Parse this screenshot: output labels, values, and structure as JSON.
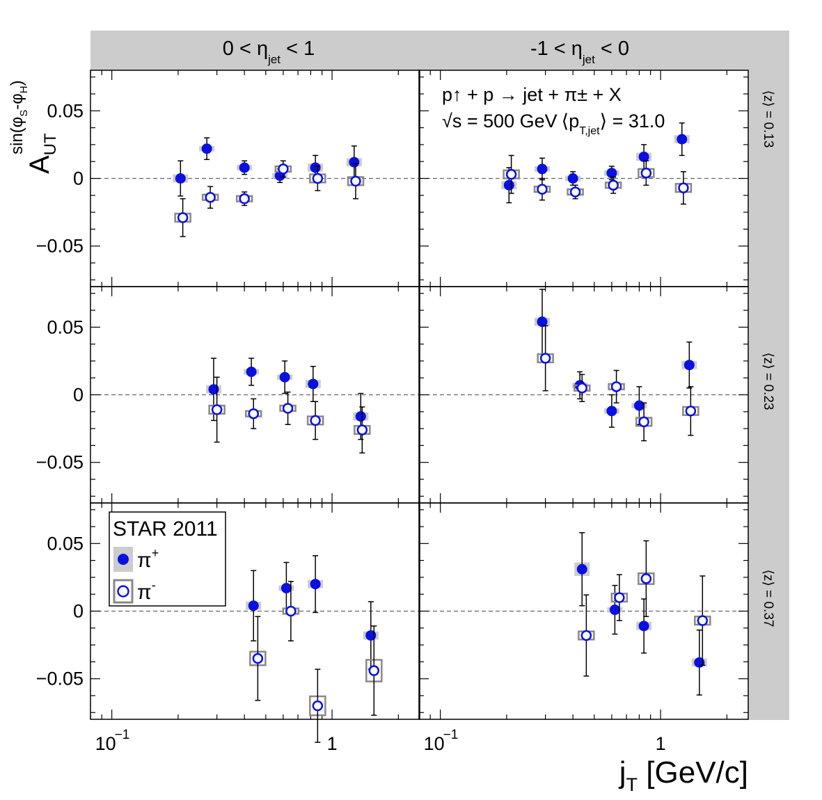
{
  "chart_data": {
    "type": "scatter",
    "experiment": "STAR 2011",
    "reaction": "p↑ + p → jet + π± + X",
    "energy_label": "√s = 500 GeV",
    "pt_label": "⟨p",
    "pt_sub": "T,jet",
    "pt_value": "⟩ = 31.0",
    "xlabel": "j",
    "xlabel_sub": "T",
    "xlabel_unit": " [GeV/c]",
    "ylabel": "A",
    "ylabel_sub": "UT",
    "ylabel_sup": "sin(φ",
    "ylabel_sup_s": "S",
    "ylabel_sup_mid": "-φ",
    "ylabel_sup_h": "H",
    "ylabel_sup_end": ")",
    "x_scale": "log",
    "xlim": [
      0.08,
      2.5
    ],
    "ylim": [
      -0.08,
      0.08
    ],
    "x_tick_labels": [
      "10",
      "−1",
      "1"
    ],
    "y_tick_labels": [
      "0.05",
      "0",
      "−0.05"
    ],
    "columns": [
      {
        "pre": "0 < η",
        "sub": "jet",
        "post": " < 1"
      },
      {
        "pre": "-1 < η",
        "sub": "jet",
        "post": " < 0"
      }
    ],
    "rows": [
      "⟨z⟩ = 0.13",
      "⟨z⟩ = 0.23",
      "⟨z⟩ = 0.37"
    ],
    "legend": {
      "title": "STAR 2011",
      "entries": [
        {
          "label": "π",
          "sup": "+"
        },
        {
          "label": "π",
          "sup": "-"
        }
      ]
    },
    "series": [
      {
        "name": "π+",
        "marker": "filled-circle",
        "color": "#0a10e0",
        "panels": [
          {
            "row": 0,
            "col": 0,
            "points": [
              [
                0.205,
                0.0,
                0.013,
                0.003
              ],
              [
                0.27,
                0.022,
                0.008,
                0.002
              ],
              [
                0.4,
                0.008,
                0.005,
                0.002
              ],
              [
                0.58,
                0.002,
                0.005,
                0.002
              ],
              [
                0.84,
                0.008,
                0.009,
                0.003
              ],
              [
                1.26,
                0.012,
                0.012,
                0.003
              ]
            ]
          },
          {
            "row": 0,
            "col": 1,
            "points": [
              [
                0.205,
                -0.005,
                0.013,
                0.003
              ],
              [
                0.29,
                0.007,
                0.008,
                0.002
              ],
              [
                0.4,
                0.0,
                0.005,
                0.002
              ],
              [
                0.6,
                0.004,
                0.005,
                0.002
              ],
              [
                0.84,
                0.016,
                0.009,
                0.003
              ],
              [
                1.25,
                0.029,
                0.012,
                0.003
              ]
            ]
          },
          {
            "row": 1,
            "col": 0,
            "points": [
              [
                0.29,
                0.004,
                0.023,
                0.003
              ],
              [
                0.43,
                0.017,
                0.01,
                0.002
              ],
              [
                0.61,
                0.013,
                0.012,
                0.002
              ],
              [
                0.82,
                0.008,
                0.013,
                0.003
              ],
              [
                1.35,
                -0.016,
                0.017,
                0.003
              ]
            ]
          },
          {
            "row": 1,
            "col": 1,
            "points": [
              [
                0.29,
                0.054,
                0.024,
                0.003
              ],
              [
                0.43,
                0.007,
                0.01,
                0.002
              ],
              [
                0.6,
                -0.012,
                0.012,
                0.002
              ],
              [
                0.8,
                -0.008,
                0.014,
                0.002
              ],
              [
                1.35,
                0.022,
                0.017,
                0.003
              ]
            ]
          },
          {
            "row": 2,
            "col": 0,
            "points": [
              [
                0.44,
                0.004,
                0.026,
                0.003
              ],
              [
                0.62,
                0.017,
                0.019,
                0.002
              ],
              [
                0.84,
                0.02,
                0.021,
                0.003
              ],
              [
                1.5,
                -0.018,
                0.025,
                0.003
              ]
            ]
          },
          {
            "row": 2,
            "col": 1,
            "points": [
              [
                0.44,
                0.031,
                0.027,
                0.005
              ],
              [
                0.62,
                0.001,
                0.018,
                0.002
              ],
              [
                0.84,
                -0.011,
                0.02,
                0.003
              ],
              [
                1.5,
                -0.038,
                0.024,
                0.003
              ]
            ]
          }
        ]
      },
      {
        "name": "π-",
        "marker": "open-circle",
        "color": "#0a10e0",
        "panels": [
          {
            "row": 0,
            "col": 0,
            "points": [
              [
                0.21,
                -0.029,
                0.014,
                0.003
              ],
              [
                0.28,
                -0.014,
                0.008,
                0.002
              ],
              [
                0.4,
                -0.015,
                0.005,
                0.002
              ],
              [
                0.6,
                0.007,
                0.006,
                0.002
              ],
              [
                0.86,
                0.0,
                0.009,
                0.003
              ],
              [
                1.28,
                -0.002,
                0.013,
                0.003
              ]
            ]
          },
          {
            "row": 0,
            "col": 1,
            "points": [
              [
                0.21,
                0.003,
                0.014,
                0.003
              ],
              [
                0.29,
                -0.008,
                0.008,
                0.002
              ],
              [
                0.41,
                -0.01,
                0.005,
                0.002
              ],
              [
                0.61,
                -0.005,
                0.006,
                0.002
              ],
              [
                0.86,
                0.004,
                0.009,
                0.003
              ],
              [
                1.27,
                -0.007,
                0.012,
                0.003
              ]
            ]
          },
          {
            "row": 1,
            "col": 0,
            "points": [
              [
                0.3,
                -0.011,
                0.024,
                0.003
              ],
              [
                0.44,
                -0.014,
                0.011,
                0.002
              ],
              [
                0.63,
                -0.01,
                0.012,
                0.002
              ],
              [
                0.84,
                -0.019,
                0.014,
                0.003
              ],
              [
                1.37,
                -0.026,
                0.017,
                0.003
              ]
            ]
          },
          {
            "row": 1,
            "col": 1,
            "points": [
              [
                0.3,
                0.027,
                0.024,
                0.003
              ],
              [
                0.44,
                0.005,
                0.01,
                0.002
              ],
              [
                0.63,
                0.006,
                0.012,
                0.002
              ],
              [
                0.84,
                -0.02,
                0.014,
                0.003
              ],
              [
                1.37,
                -0.012,
                0.018,
                0.003
              ]
            ]
          },
          {
            "row": 2,
            "col": 0,
            "points": [
              [
                0.46,
                -0.035,
                0.031,
                0.005
              ],
              [
                0.65,
                0.0,
                0.022,
                0.002
              ],
              [
                0.86,
                -0.07,
                0.027,
                0.007
              ],
              [
                1.55,
                -0.044,
                0.033,
                0.008
              ]
            ]
          },
          {
            "row": 2,
            "col": 1,
            "points": [
              [
                0.46,
                -0.018,
                0.03,
                0.003
              ],
              [
                0.65,
                0.01,
                0.017,
                0.003
              ],
              [
                0.86,
                0.024,
                0.028,
                0.004
              ],
              [
                1.55,
                -0.007,
                0.033,
                0.003
              ]
            ]
          }
        ]
      }
    ]
  }
}
